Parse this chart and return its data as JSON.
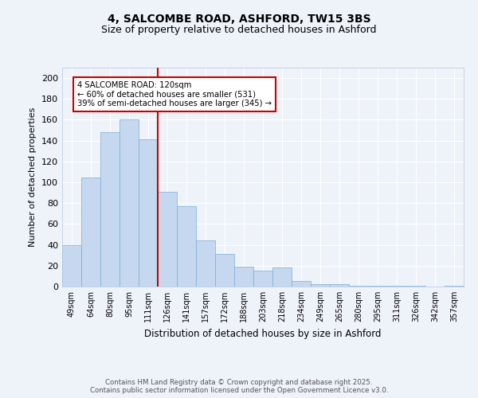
{
  "title_line1": "4, SALCOMBE ROAD, ASHFORD, TW15 3BS",
  "title_line2": "Size of property relative to detached houses in Ashford",
  "xlabel": "Distribution of detached houses by size in Ashford",
  "ylabel": "Number of detached properties",
  "categories": [
    "49sqm",
    "64sqm",
    "80sqm",
    "95sqm",
    "111sqm",
    "126sqm",
    "141sqm",
    "157sqm",
    "172sqm",
    "188sqm",
    "203sqm",
    "218sqm",
    "234sqm",
    "249sqm",
    "265sqm",
    "280sqm",
    "295sqm",
    "311sqm",
    "326sqm",
    "342sqm",
    "357sqm"
  ],
  "values": [
    40,
    105,
    148,
    160,
    141,
    91,
    77,
    44,
    31,
    19,
    15,
    18,
    5,
    2,
    2,
    1,
    1,
    1,
    1,
    0,
    1
  ],
  "bar_color": "#c5d8ef",
  "bar_edge_color": "#7aaed6",
  "reference_line_color": "#cc0000",
  "annotation_line1": "4 SALCOMBE ROAD: 120sqm",
  "annotation_line2": "← 60% of detached houses are smaller (531)",
  "annotation_line3": "39% of semi-detached houses are larger (345) →",
  "ylim": [
    0,
    210
  ],
  "yticks": [
    0,
    20,
    40,
    60,
    80,
    100,
    120,
    140,
    160,
    180,
    200
  ],
  "background_color": "#eef2f9",
  "grid_color": "#ffffff",
  "footer_line1": "Contains HM Land Registry data © Crown copyright and database right 2025.",
  "footer_line2": "Contains public sector information licensed under the Open Government Licence v3.0."
}
